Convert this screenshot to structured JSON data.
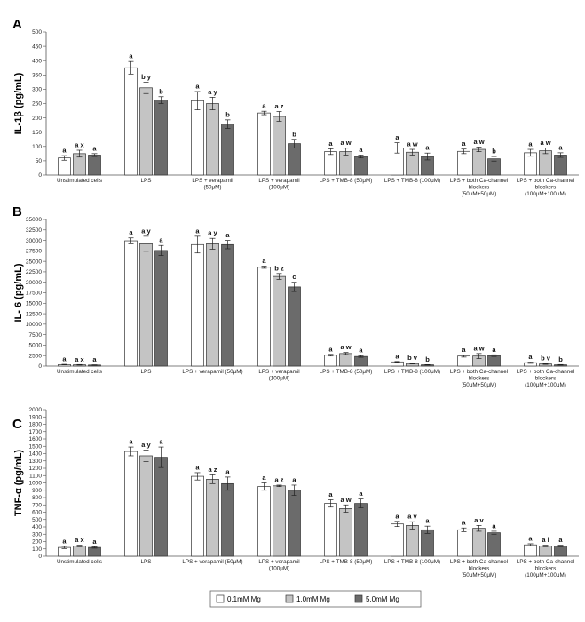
{
  "legend": [
    {
      "label": "0.1mM Mg",
      "color": "#ffffff"
    },
    {
      "label": "1.0mM Mg",
      "color": "#c4c4c4"
    },
    {
      "label": "5.0mM Mg",
      "color": "#6b6b6b"
    }
  ],
  "chart_data": [
    {
      "type": "bar",
      "panel": "A",
      "ylabel": "IL-1β (pg/mL)",
      "ylim": [
        0,
        500
      ],
      "ystep": 50,
      "categories": [
        [
          "Unstimulated cells"
        ],
        [
          "LPS"
        ],
        [
          "LPS + verapamil",
          "(50μM)"
        ],
        [
          "LPS + verapamil",
          "(100μM)"
        ],
        [
          "LPS + TMB-8 (50μM)"
        ],
        [
          "LPS + TMB-8 (100μM)"
        ],
        [
          "LPS + both Ca-channel",
          "blockers",
          "(50μM+50μM)"
        ],
        [
          "LPS + both Ca-channel",
          "blockers",
          "(100μM+100μM)"
        ]
      ],
      "series": [
        {
          "values": [
            60,
            375,
            260,
            217,
            82,
            95,
            83,
            78
          ],
          "errors": [
            8,
            22,
            32,
            6,
            10,
            18,
            8,
            12
          ],
          "labels": [
            "a",
            "a",
            "a",
            "a",
            "a",
            "a",
            "a",
            "a"
          ]
        },
        {
          "values": [
            75,
            305,
            250,
            205,
            82,
            80,
            90,
            85
          ],
          "errors": [
            12,
            20,
            22,
            17,
            12,
            10,
            8,
            10
          ],
          "labels": [
            "a x",
            "b y",
            "a y",
            "a z",
            "a w",
            "a w",
            "a w",
            "a w"
          ]
        },
        {
          "values": [
            70,
            262,
            178,
            110,
            65,
            65,
            57,
            70
          ],
          "errors": [
            5,
            12,
            15,
            15,
            5,
            12,
            8,
            8
          ],
          "labels": [
            "a",
            "b",
            "b",
            "b",
            "a",
            "a",
            "b",
            "a"
          ]
        }
      ]
    },
    {
      "type": "bar",
      "panel": "B",
      "ylabel": "IL- 6 (pg/mL)",
      "ylim": [
        0,
        35000
      ],
      "ystep": 2500,
      "categories": [
        [
          "Unstimulated cells"
        ],
        [
          "LPS"
        ],
        [
          "LPS + verapamil (50μM)"
        ],
        [
          "LPS + verapamil",
          "(100μM)"
        ],
        [
          "LPS + TMB-8 (50μM)"
        ],
        [
          "LPS + TMB-8 (100μM)"
        ],
        [
          "LPS + both Ca-channel",
          "blockers",
          "(50μM+50μM)"
        ],
        [
          "LPS + both Ca-channel",
          "blockers",
          "(100μM+100μM)"
        ]
      ],
      "series": [
        {
          "values": [
            350,
            29900,
            29000,
            23600,
            2600,
            1000,
            2400,
            800
          ],
          "errors": [
            60,
            700,
            2000,
            250,
            200,
            100,
            250,
            150
          ],
          "labels": [
            "a",
            "a",
            "a",
            "a",
            "a",
            "a",
            "a",
            "a"
          ]
        },
        {
          "values": [
            300,
            29200,
            29200,
            21400,
            3000,
            600,
            2400,
            500
          ],
          "errors": [
            60,
            1800,
            1300,
            700,
            250,
            100,
            600,
            100
          ],
          "labels": [
            "a x",
            "a y",
            "a y",
            "b z",
            "a w",
            "b v",
            "a w",
            "b v"
          ]
        },
        {
          "values": [
            250,
            27600,
            29000,
            18900,
            2300,
            300,
            2500,
            300
          ],
          "errors": [
            50,
            1200,
            1000,
            1100,
            200,
            50,
            200,
            60
          ],
          "labels": [
            "a",
            "a",
            "a",
            "c",
            "a",
            "b",
            "a",
            "b"
          ]
        }
      ]
    },
    {
      "type": "bar",
      "panel": "C",
      "ylabel": "TNF-α (pg/mL)",
      "ylim": [
        0,
        2000
      ],
      "ystep": 100,
      "categories": [
        [
          "Unstimulated cells"
        ],
        [
          "LPS"
        ],
        [
          "LPS + verapamil (50μM)"
        ],
        [
          "LPS + verapamil",
          "(100μM)"
        ],
        [
          "LPS + TMB-8 (50μM)"
        ],
        [
          "LPS + TMB-8 (100μM)"
        ],
        [
          "LPS + both Ca-channel",
          "blockers",
          "(50μM+50μM)"
        ],
        [
          "LPS + both Ca-channel",
          "blockers",
          "(100μM+100μM)"
        ]
      ],
      "series": [
        {
          "values": [
            120,
            1430,
            1090,
            950,
            720,
            440,
            360,
            155
          ],
          "errors": [
            15,
            60,
            50,
            50,
            50,
            35,
            25,
            15
          ],
          "labels": [
            "a",
            "a",
            "a",
            "a",
            "a",
            "a",
            "a",
            "a"
          ]
        },
        {
          "values": [
            140,
            1370,
            1050,
            960,
            650,
            420,
            380,
            140
          ],
          "errors": [
            10,
            80,
            60,
            10,
            50,
            50,
            40,
            10
          ],
          "labels": [
            "a x",
            "a y",
            "a z",
            "a z",
            "a w",
            "a v",
            "a v",
            "a i"
          ]
        },
        {
          "values": [
            120,
            1350,
            990,
            900,
            720,
            360,
            320,
            140
          ],
          "errors": [
            10,
            140,
            90,
            70,
            60,
            50,
            20,
            10
          ],
          "labels": [
            "a",
            "a",
            "a",
            "a",
            "a",
            "a",
            "a",
            "a"
          ]
        }
      ]
    }
  ]
}
